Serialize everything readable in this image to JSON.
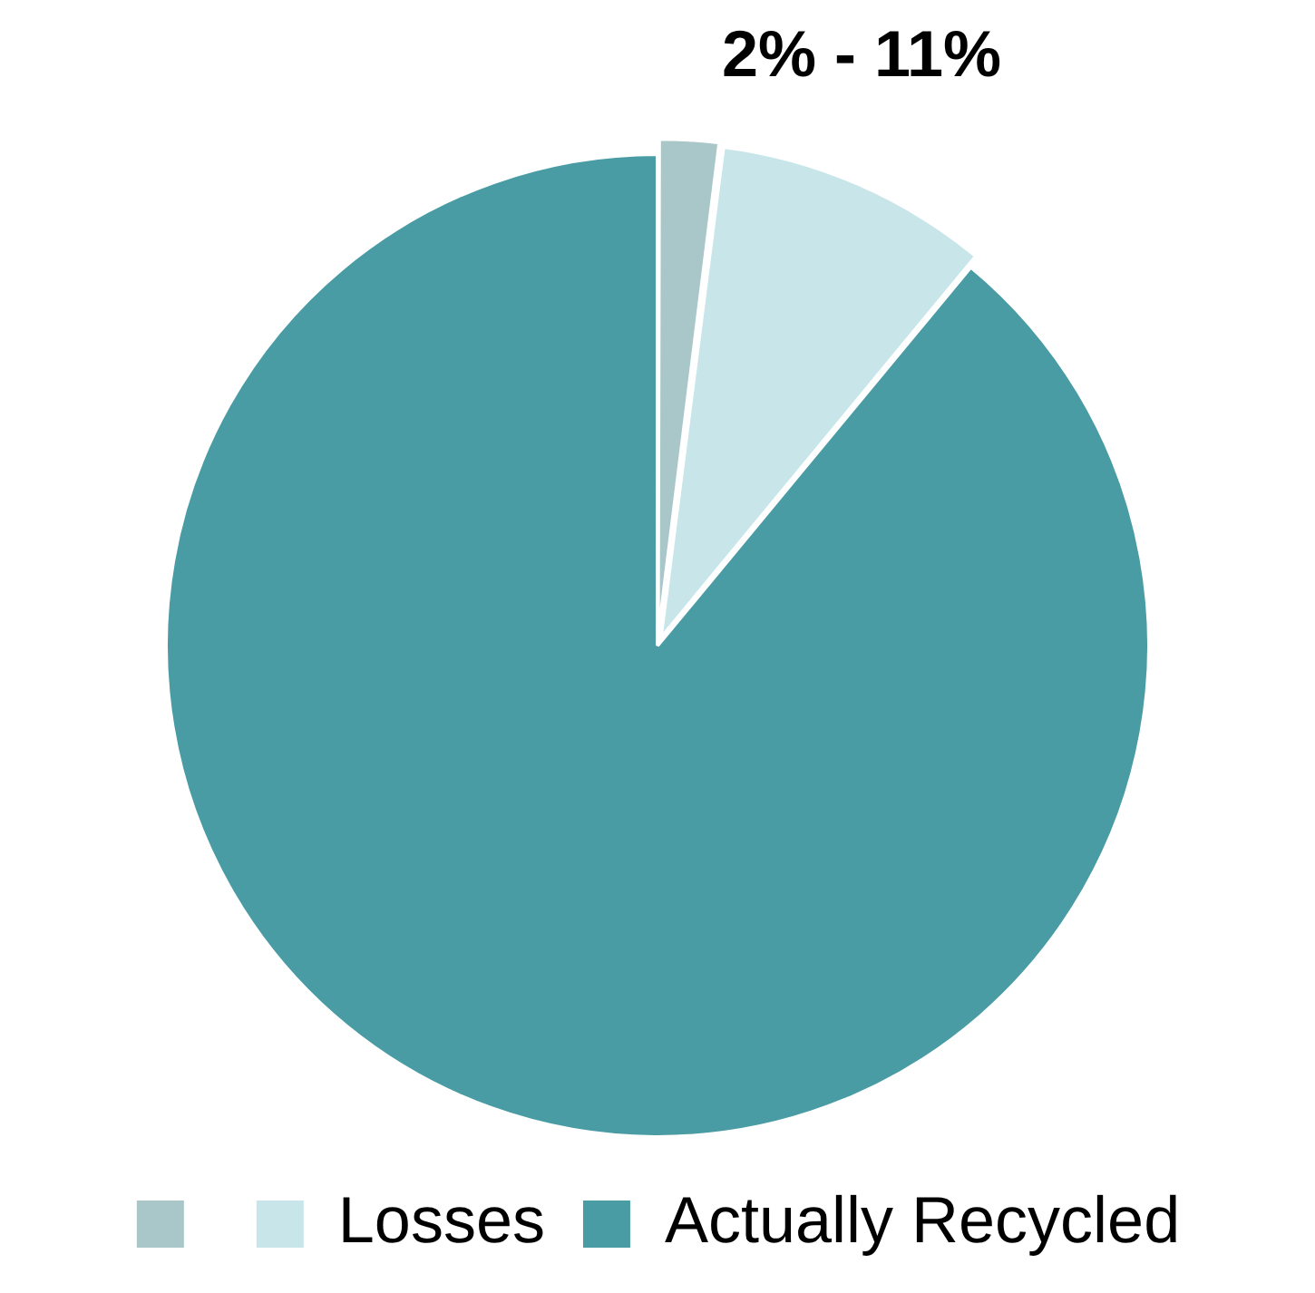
{
  "chart_data": {
    "type": "pie",
    "categories": [
      null,
      "Losses",
      "Actually Recycled"
    ],
    "values": [
      2,
      9,
      89
    ],
    "colors": [
      "#a9c6c9",
      "#c8e6ea",
      "#4a9ca4"
    ],
    "legend": "bottom",
    "annotations": [
      "2% - 11%"
    ]
  }
}
